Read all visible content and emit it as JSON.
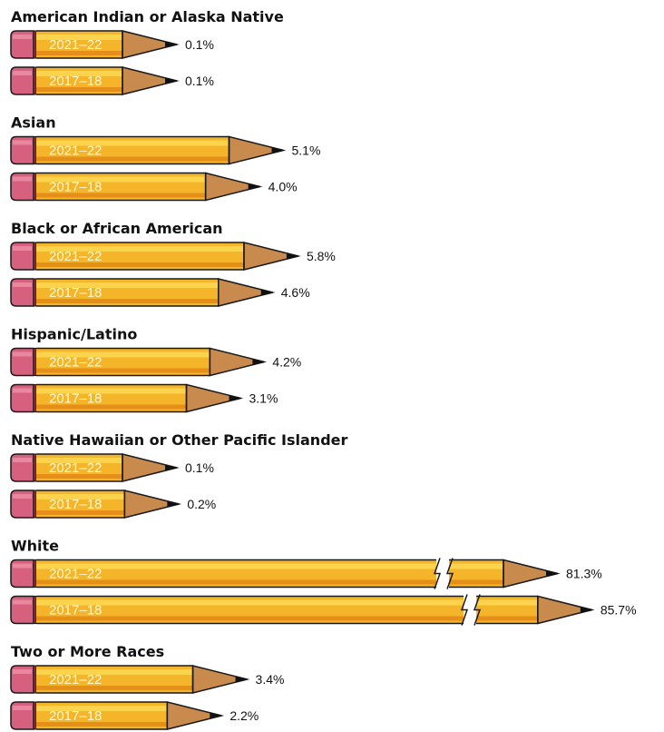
{
  "chart_data": {
    "type": "bar",
    "orientation": "horizontal",
    "style": "pencil",
    "colors": {
      "pencil_body": "#f5b52a",
      "pencil_highlight": "#fcd34d",
      "pencil_shade": "#e58e1a",
      "eraser": "#d6607e",
      "wood": "#c98a4e",
      "lead": "#111111",
      "outline": "#1a1a1a"
    },
    "groups": [
      {
        "label": "American Indian or Alaska Native",
        "bars": [
          {
            "year": "2021–22",
            "value": 0.1,
            "label": "0.1%"
          },
          {
            "year": "2017–18",
            "value": 0.1,
            "label": "0.1%"
          }
        ]
      },
      {
        "label": "Asian",
        "bars": [
          {
            "year": "2021–22",
            "value": 5.1,
            "label": "5.1%"
          },
          {
            "year": "2017–18",
            "value": 4.0,
            "label": "4.0%"
          }
        ]
      },
      {
        "label": "Black or African American",
        "bars": [
          {
            "year": "2021–22",
            "value": 5.8,
            "label": "5.8%"
          },
          {
            "year": "2017–18",
            "value": 4.6,
            "label": "4.6%"
          }
        ]
      },
      {
        "label": "Hispanic/Latino",
        "bars": [
          {
            "year": "2021–22",
            "value": 4.2,
            "label": "4.2%"
          },
          {
            "year": "2017–18",
            "value": 3.1,
            "label": "3.1%"
          }
        ]
      },
      {
        "label": "Native Hawaiian or Other Pacific Islander",
        "bars": [
          {
            "year": "2021–22",
            "value": 0.1,
            "label": "0.1%"
          },
          {
            "year": "2017–18",
            "value": 0.2,
            "label": "0.2%"
          }
        ]
      },
      {
        "label": "White",
        "broken_axis": true,
        "bars": [
          {
            "year": "2021–22",
            "value": 81.3,
            "label": "81.3%"
          },
          {
            "year": "2017–18",
            "value": 85.7,
            "label": "85.7%"
          }
        ]
      },
      {
        "label": "Two or More Races",
        "bars": [
          {
            "year": "2021–22",
            "value": 3.4,
            "label": "3.4%"
          },
          {
            "year": "2017–18",
            "value": 2.2,
            "label": "2.2%"
          }
        ]
      }
    ]
  }
}
